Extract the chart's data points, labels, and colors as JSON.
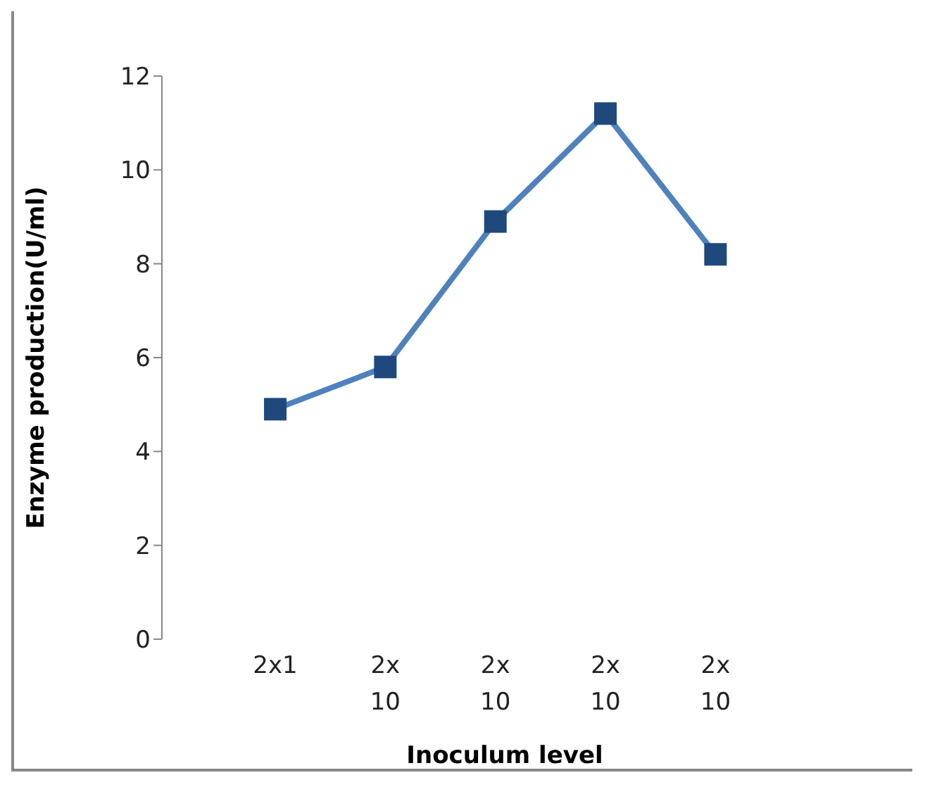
{
  "chart_data": {
    "type": "line",
    "xlabel": "Inoculum level",
    "ylabel": "Enzyme production(U/ml)",
    "categories": [
      "2x1",
      "2x 10",
      "2x 10",
      "2x 10",
      "2x 10"
    ],
    "series": [
      {
        "color": "#4f81bd",
        "values": [
          4.9,
          5.8,
          8.9,
          11.2,
          8.2
        ]
      }
    ],
    "marker": "square",
    "ylim": [
      0,
      12
    ],
    "yticks": [
      0,
      2,
      4,
      6,
      8,
      10,
      12
    ]
  }
}
